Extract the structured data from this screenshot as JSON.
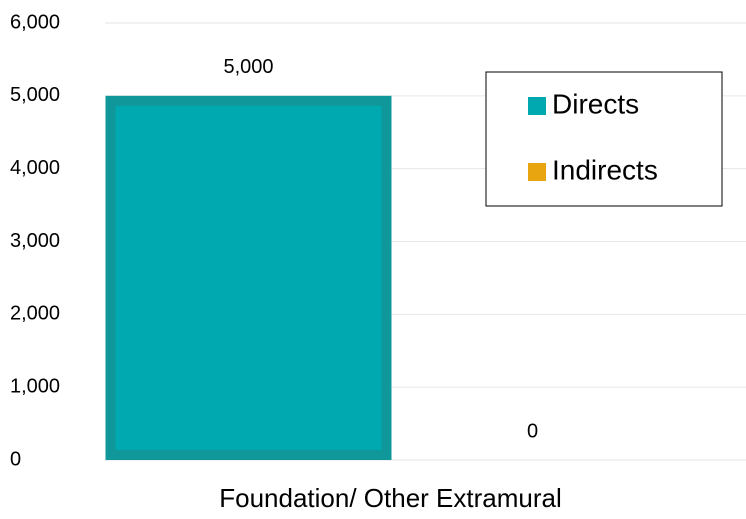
{
  "chart_data": {
    "type": "bar",
    "categories": [
      "Foundation/ Other Extramural"
    ],
    "series": [
      {
        "name": "Directs",
        "color": "#00a8b0",
        "values": [
          5000
        ],
        "value_labels": [
          "5,000"
        ]
      },
      {
        "name": "Indirects",
        "color": "#e8a50f",
        "values": [
          0
        ]
      }
    ],
    "ylim": [
      0,
      6000
    ],
    "yticks": [
      0,
      {
        "value": 1000,
        "label": "1,000"
      },
      {
        "value": 2000,
        "label": "2,000"
      },
      {
        "value": 3000,
        "label": "3,000"
      },
      {
        "value": 4000,
        "label": "4,000"
      },
      {
        "value": 5000,
        "label": "5,000"
      },
      {
        "value": 6000,
        "label": "6,000"
      }
    ],
    "grid": true,
    "legend": "upper right"
  }
}
